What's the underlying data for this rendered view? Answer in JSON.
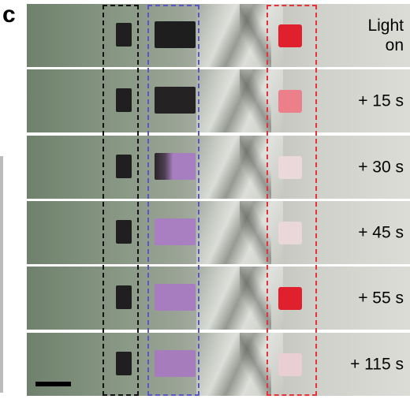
{
  "panel_label": "c",
  "frames": [
    {
      "label": "Light\non",
      "dark_color": "#1e1e1e",
      "dark_state": "dark",
      "red_color": "#e0202c"
    },
    {
      "label": "+ 15 s",
      "dark_color": "#242222",
      "dark_state": "dark",
      "red_color": "#eb7f8a"
    },
    {
      "label": "+ 30 s",
      "dark_color": "#a77fc0",
      "dark_state": "partial",
      "red_color": "#ead8da"
    },
    {
      "label": "+ 45 s",
      "dark_color": "#a97fc2",
      "dark_state": "purple",
      "red_color": "#ead7da"
    },
    {
      "label": "+ 55 s",
      "dark_color": "#a77dbf",
      "dark_state": "purple",
      "red_color": "#e0202c"
    },
    {
      "label": "+ 115 s",
      "dark_color": "#a67cbd",
      "dark_state": "purple",
      "red_color": "#e9cfd3"
    }
  ],
  "colors": {
    "black_box": "#111111",
    "blue_box": "#5a56c8",
    "red_box": "#e5333a"
  }
}
